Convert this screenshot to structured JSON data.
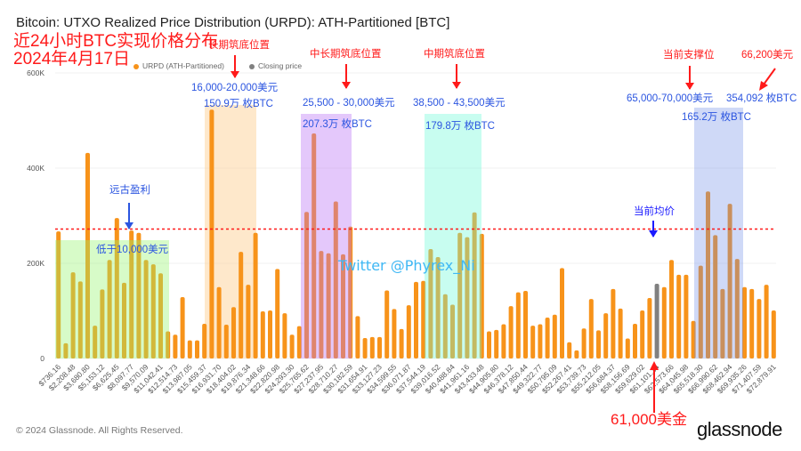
{
  "header": {
    "title": "Bitcoin: UTXO Realized Price Distribution (URPD): ATH-Partitioned [BTC]"
  },
  "legend": {
    "series_label": "URPD (ATH-Partitioned)",
    "closing_label": "Closing price"
  },
  "colors": {
    "bar": "#f7931a",
    "closing_bar": "#808080",
    "avg_line": "#ff1a1a",
    "annotation_red": "#ff1a1a",
    "annotation_blue": "#2b55e0"
  },
  "annotations": {
    "overlay_title": "近24小时BTC实现价格分布",
    "overlay_date": "2024年4月17日",
    "long_term": {
      "label": "长期筑底位置",
      "range": "16,000-20,000美元",
      "amount": "150.9万 枚BTC"
    },
    "mid_long_term": {
      "label": "中长期筑底位置",
      "range": "25,500 - 30,000美元",
      "amount": "207.3万 枚BTC"
    },
    "mid_term": {
      "label": "中期筑底位置",
      "range": "38,500 - 43,500美元",
      "amount": "179.8万 枚BTC"
    },
    "support": {
      "label": "当前支撑位",
      "range": "65,000-70,000美元",
      "amount": "165.2万 枚BTC"
    },
    "peak": {
      "label": "66,200美元",
      "amount": "354,092 枚BTC"
    },
    "ancient": {
      "label": "远古盈利",
      "range": "低于10,000美元"
    },
    "avg": {
      "label": "当前均价"
    },
    "current": {
      "label": "61,000美金"
    },
    "watermark": "Twitter @Phyrex_Ni"
  },
  "footer": {
    "copyright": "© 2024 Glassnode. All Rights Reserved.",
    "logo": "glassnode"
  },
  "chart_data": {
    "type": "bar",
    "title": "Bitcoin: UTXO Realized Price Distribution (URPD): ATH-Partitioned [BTC]",
    "ylim": [
      0,
      600000
    ],
    "yticks": [
      {
        "v": 0,
        "label": "0"
      },
      {
        "v": 200000,
        "label": "200K"
      },
      {
        "v": 400000,
        "label": "400K"
      },
      {
        "v": 600000,
        "label": "600K"
      }
    ],
    "grid": true,
    "legend_position": "top-left",
    "closing_price_bar_index": 82,
    "average_line_value": 272000,
    "x_tick_labels": [
      "$736.16",
      "$2,208.48",
      "$3,680.80",
      "$5,153.12",
      "$6,625.45",
      "$8,097.77",
      "$9,570.09",
      "$11,042.41",
      "$12,514.73",
      "$13,987.05",
      "$15,459.37",
      "$16,931.70",
      "$18,404.02",
      "$19,876.34",
      "$21,348.66",
      "$22,820.98",
      "$24,293.30",
      "$25,765.62",
      "$27,237.95",
      "$28,710.27",
      "$30,182.59",
      "$31,654.91",
      "$33,127.23",
      "$34,599.55",
      "$36,071.87",
      "$37,544.19",
      "$39,016.52",
      "$40,488.84",
      "$41,961.16",
      "$43,433.48",
      "$44,905.80",
      "$46,378.12",
      "$47,850.44",
      "$49,322.77",
      "$50,795.09",
      "$52,267.41",
      "$53,739.73",
      "$55,212.05",
      "$56,684.37",
      "$58,156.69",
      "$59,629.02",
      "$61,101.34",
      "$62,573.66",
      "$64,045.98",
      "$65,518.30",
      "$66,990.62",
      "$68,462.94",
      "$69,935.26",
      "$71,407.59",
      "$72,879.91"
    ],
    "values": [
      267000,
      32000,
      181000,
      162000,
      432000,
      69000,
      145000,
      207000,
      295000,
      159000,
      269000,
      264000,
      207000,
      198000,
      179000,
      57000,
      50000,
      129000,
      38000,
      38000,
      73000,
      523000,
      150000,
      71000,
      108000,
      224000,
      155000,
      264000,
      99000,
      101000,
      188000,
      95000,
      50000,
      68000,
      308000,
      473000,
      226000,
      221000,
      330000,
      219000,
      277000,
      89000,
      43000,
      45000,
      45000,
      143000,
      104000,
      62000,
      112000,
      161000,
      163000,
      230000,
      213000,
      135000,
      113000,
      264000,
      255000,
      307000,
      262000,
      57000,
      60000,
      72000,
      110000,
      139000,
      142000,
      69000,
      72000,
      86000,
      92000,
      190000,
      34000,
      17000,
      63000,
      125000,
      59000,
      95000,
      146000,
      105000,
      42000,
      73000,
      101000,
      127000,
      157000,
      150000,
      207000,
      176000,
      176000,
      79000,
      195000,
      351000,
      259000,
      146000,
      325000,
      209000,
      150000,
      146000,
      125000,
      155000,
      101000
    ]
  }
}
